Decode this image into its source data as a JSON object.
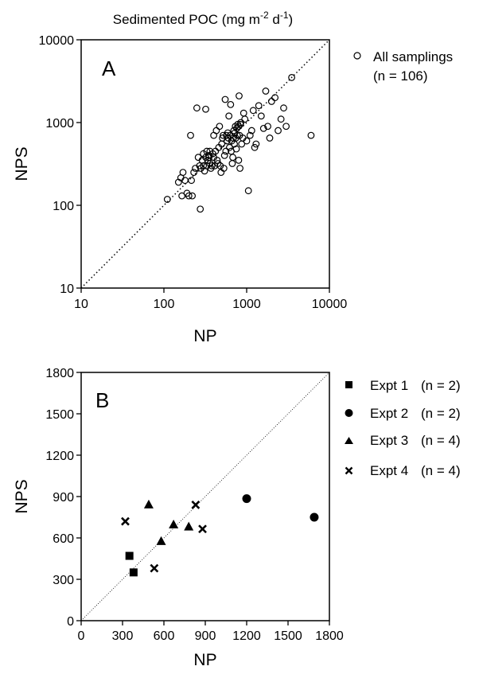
{
  "chart_data": [
    {
      "panel_label": "A",
      "type": "scatter",
      "title": "Sedimented POC (mg m",
      "title_sup1": "-2",
      "title_mid": " d",
      "title_sup2": "-1",
      "title_end": ")",
      "xlabel": "NP",
      "ylabel": "NPS",
      "x_scale": "log",
      "y_scale": "log",
      "xlim": [
        10,
        10000
      ],
      "ylim": [
        10,
        10000
      ],
      "xticks": [
        10,
        100,
        1000,
        10000
      ],
      "xtick_labels": [
        "10",
        "100",
        "1000",
        "10000"
      ],
      "yticks": [
        10,
        100,
        1000,
        10000
      ],
      "ytick_labels": [
        "10",
        "100",
        "1000",
        "10000"
      ],
      "reference_line": "1:1",
      "grid": false,
      "legend_position": "top-right outside",
      "series": [
        {
          "name": "All samplings",
          "name_line2": "(n = 106)",
          "marker": "open-circle",
          "points": [
            [
              110,
              118
            ],
            [
              150,
              190
            ],
            [
              160,
              215
            ],
            [
              165,
              130
            ],
            [
              170,
              250
            ],
            [
              180,
              200
            ],
            [
              190,
              140
            ],
            [
              200,
              130
            ],
            [
              210,
              700
            ],
            [
              215,
              200
            ],
            [
              220,
              130
            ],
            [
              230,
              250
            ],
            [
              240,
              280
            ],
            [
              250,
              1500
            ],
            [
              260,
              380
            ],
            [
              270,
              300
            ],
            [
              275,
              90
            ],
            [
              280,
              280
            ],
            [
              290,
              350
            ],
            [
              300,
              420
            ],
            [
              300,
              300
            ],
            [
              310,
              260
            ],
            [
              320,
              1450
            ],
            [
              320,
              380
            ],
            [
              330,
              450
            ],
            [
              330,
              300
            ],
            [
              340,
              350
            ],
            [
              350,
              380
            ],
            [
              350,
              400
            ],
            [
              360,
              450
            ],
            [
              360,
              320
            ],
            [
              370,
              280
            ],
            [
              380,
              300
            ],
            [
              390,
              420
            ],
            [
              400,
              380
            ],
            [
              400,
              700
            ],
            [
              410,
              300
            ],
            [
              420,
              450
            ],
            [
              430,
              800
            ],
            [
              440,
              350
            ],
            [
              450,
              320
            ],
            [
              460,
              500
            ],
            [
              470,
              900
            ],
            [
              480,
              300
            ],
            [
              490,
              250
            ],
            [
              500,
              550
            ],
            [
              510,
              650
            ],
            [
              520,
              700
            ],
            [
              530,
              280
            ],
            [
              540,
              400
            ],
            [
              550,
              1900
            ],
            [
              560,
              450
            ],
            [
              570,
              700
            ],
            [
              580,
              600
            ],
            [
              590,
              750
            ],
            [
              600,
              650
            ],
            [
              610,
              1200
            ],
            [
              620,
              500
            ],
            [
              630,
              700
            ],
            [
              640,
              1650
            ],
            [
              650,
              450
            ],
            [
              660,
              600
            ],
            [
              670,
              320
            ],
            [
              680,
              380
            ],
            [
              690,
              650
            ],
            [
              700,
              800
            ],
            [
              710,
              550
            ],
            [
              720,
              750
            ],
            [
              730,
              900
            ],
            [
              740,
              650
            ],
            [
              750,
              480
            ],
            [
              760,
              850
            ],
            [
              770,
              700
            ],
            [
              780,
              950
            ],
            [
              800,
              350
            ],
            [
              800,
              900
            ],
            [
              810,
              2100
            ],
            [
              820,
              700
            ],
            [
              830,
              280
            ],
            [
              840,
              950
            ],
            [
              850,
              1000
            ],
            [
              870,
              550
            ],
            [
              900,
              650
            ],
            [
              920,
              1300
            ],
            [
              950,
              1100
            ],
            [
              1000,
              600
            ],
            [
              1050,
              150
            ],
            [
              1100,
              700
            ],
            [
              1150,
              800
            ],
            [
              1200,
              1400
            ],
            [
              1250,
              500
            ],
            [
              1300,
              550
            ],
            [
              1400,
              1600
            ],
            [
              1500,
              1200
            ],
            [
              1600,
              850
            ],
            [
              1700,
              2400
            ],
            [
              1800,
              900
            ],
            [
              1900,
              650
            ],
            [
              2000,
              1800
            ],
            [
              2200,
              2000
            ],
            [
              2400,
              800
            ],
            [
              2600,
              1100
            ],
            [
              2800,
              1500
            ],
            [
              3000,
              900
            ],
            [
              3500,
              3500
            ],
            [
              6000,
              700
            ]
          ]
        }
      ]
    },
    {
      "panel_label": "B",
      "type": "scatter",
      "xlabel": "NP",
      "ylabel": "NPS",
      "xlim": [
        0,
        1800
      ],
      "ylim": [
        0,
        1800
      ],
      "xticks": [
        0,
        300,
        600,
        900,
        1200,
        1500,
        1800
      ],
      "xtick_labels": [
        "0",
        "300",
        "600",
        "900",
        "1200",
        "1500",
        "1800"
      ],
      "yticks": [
        0,
        300,
        600,
        900,
        1200,
        1500,
        1800
      ],
      "ytick_labels": [
        "0",
        "300",
        "600",
        "900",
        "1200",
        "1500",
        "1800"
      ],
      "reference_line": "1:1",
      "grid": false,
      "legend_position": "top-right outside",
      "series": [
        {
          "name": "Expt 1",
          "n_label": "(n = 2)",
          "marker": "square",
          "points": [
            [
              350,
              470
            ],
            [
              380,
              350
            ]
          ]
        },
        {
          "name": "Expt 2",
          "n_label": "(n = 2)",
          "marker": "circle",
          "points": [
            [
              1200,
              885
            ],
            [
              1690,
              750
            ]
          ]
        },
        {
          "name": "Expt 3",
          "n_label": "(n = 4)",
          "marker": "triangle",
          "points": [
            [
              490,
              840
            ],
            [
              580,
              575
            ],
            [
              670,
              695
            ],
            [
              780,
              680
            ]
          ]
        },
        {
          "name": "Expt 4",
          "n_label": "(n = 4)",
          "marker": "cross",
          "points": [
            [
              320,
              720
            ],
            [
              530,
              380
            ],
            [
              830,
              840
            ],
            [
              880,
              665
            ]
          ]
        }
      ]
    }
  ]
}
